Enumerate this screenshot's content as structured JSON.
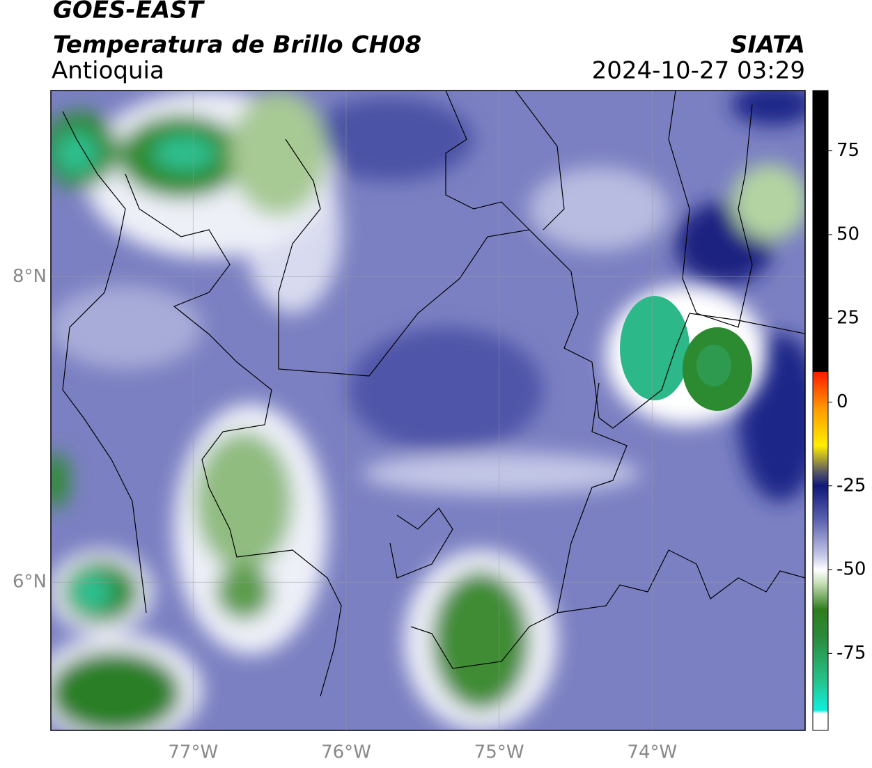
{
  "header": {
    "title": "GOES-EAST",
    "subtitle": "Temperatura de Brillo CH08",
    "region": "Antioquia",
    "source": "SIATA",
    "datetime": "2024-10-27 03:29"
  },
  "map": {
    "xlim": [
      -77.93,
      -73.0
    ],
    "ylim": [
      5.03,
      9.22
    ],
    "xticks": [
      {
        "value": -77,
        "label": "77°W"
      },
      {
        "value": -76,
        "label": "76°W"
      },
      {
        "value": -75,
        "label": "75°W"
      },
      {
        "value": -74,
        "label": "74°W"
      }
    ],
    "yticks": [
      {
        "value": 6,
        "label": "6°N"
      },
      {
        "value": 8,
        "label": "8°N"
      }
    ],
    "grid": true
  },
  "colorbar": {
    "lim": [
      -98,
      93
    ],
    "ticks": [
      75,
      50,
      25,
      0,
      -25,
      -50,
      -75
    ],
    "stops": [
      {
        "value": 93,
        "color": "#000000"
      },
      {
        "value": 9,
        "color": "#000000"
      },
      {
        "value": 9,
        "color": "#ff1a00"
      },
      {
        "value": -2,
        "color": "#ff9a00"
      },
      {
        "value": -13,
        "color": "#ffee00"
      },
      {
        "value": -21,
        "color": "#555566"
      },
      {
        "value": -25,
        "color": "#10187a"
      },
      {
        "value": -35,
        "color": "#5a60b0"
      },
      {
        "value": -46,
        "color": "#c8cae8"
      },
      {
        "value": -50,
        "color": "#ffffff"
      },
      {
        "value": -54,
        "color": "#c8e0b8"
      },
      {
        "value": -62,
        "color": "#2e7d1e"
      },
      {
        "value": -70,
        "color": "#2a8a3a"
      },
      {
        "value": -83,
        "color": "#25c28a"
      },
      {
        "value": -92,
        "color": "#10f0e0"
      },
      {
        "value": -93,
        "color": "#ffffff"
      },
      {
        "value": -98,
        "color": "#ffffff"
      }
    ]
  }
}
